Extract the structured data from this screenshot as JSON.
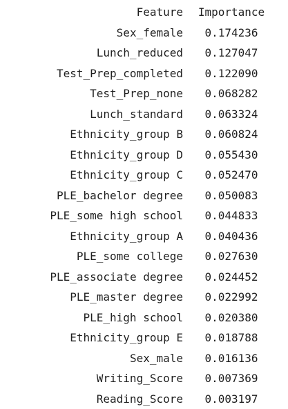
{
  "table": {
    "headers": {
      "feature": "Feature",
      "importance": "Importance"
    },
    "rows": [
      {
        "feature": "Sex_female",
        "importance": "0.174236"
      },
      {
        "feature": "Lunch_reduced",
        "importance": "0.127047"
      },
      {
        "feature": "Test_Prep_completed",
        "importance": "0.122090"
      },
      {
        "feature": "Test_Prep_none",
        "importance": "0.068282"
      },
      {
        "feature": "Lunch_standard",
        "importance": "0.063324"
      },
      {
        "feature": "Ethnicity_group B",
        "importance": "0.060824"
      },
      {
        "feature": "Ethnicity_group D",
        "importance": "0.055430"
      },
      {
        "feature": "Ethnicity_group C",
        "importance": "0.052470"
      },
      {
        "feature": "PLE_bachelor degree",
        "importance": "0.050083"
      },
      {
        "feature": "PLE_some high school",
        "importance": "0.044833"
      },
      {
        "feature": "Ethnicity_group A",
        "importance": "0.040436"
      },
      {
        "feature": "PLE_some college",
        "importance": "0.027630"
      },
      {
        "feature": "PLE_associate degree",
        "importance": "0.024452"
      },
      {
        "feature": "PLE_master degree",
        "importance": "0.022992"
      },
      {
        "feature": "PLE_high school",
        "importance": "0.020380"
      },
      {
        "feature": "Ethnicity_group E",
        "importance": "0.018788"
      },
      {
        "feature": "Sex_male",
        "importance": "0.016136"
      },
      {
        "feature": "Writing_Score",
        "importance": "0.007369"
      },
      {
        "feature": "Reading_Score",
        "importance": "0.003197"
      }
    ]
  }
}
